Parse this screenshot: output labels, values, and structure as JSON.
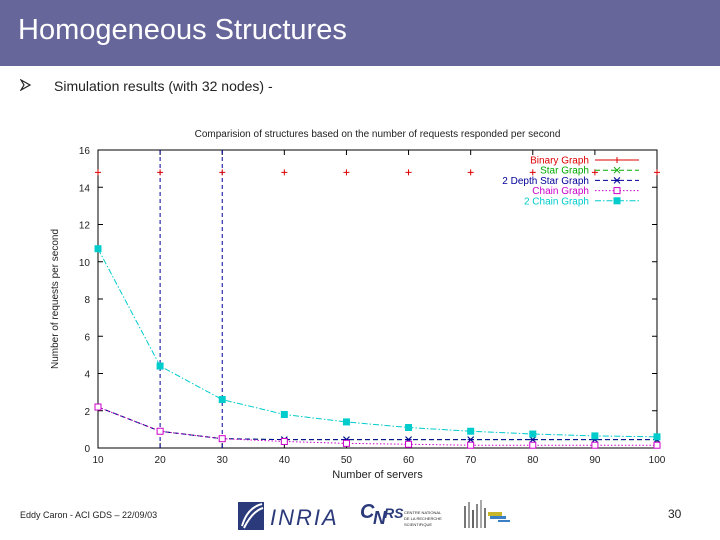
{
  "slide": {
    "title": "Homogeneous Structures",
    "bullet": "Simulation results (with 32 nodes) -",
    "bullet_icon": "arrow-bullet-icon",
    "author": "Eddy Caron - ACI GDS – 22/09/03",
    "page_number": "30",
    "title_bar_color": "#66669a"
  },
  "logos": {
    "inria": "INRIA",
    "cnrs_lines": [
      "CENTRE NATIONAL",
      "DE LA RECHERCHE",
      "SCIENTIFIQUE"
    ]
  },
  "chart_data": {
    "type": "line",
    "title": "Comparision of structures based on the number of requests responded per second",
    "xlabel": "Number of servers",
    "ylabel": "Number of requests per second",
    "xlim": [
      10,
      100
    ],
    "ylim": [
      0,
      16
    ],
    "x_ticks": [
      10,
      20,
      30,
      40,
      50,
      60,
      70,
      80,
      90,
      100
    ],
    "y_ticks": [
      0,
      2,
      4,
      6,
      8,
      10,
      12,
      14,
      16
    ],
    "legend_position": "top-right",
    "vertical_markers": [
      20,
      30
    ],
    "x": [
      10,
      20,
      30,
      40,
      50,
      60,
      70,
      80,
      90,
      100
    ],
    "series": [
      {
        "name": "Binary Graph",
        "color": "#dd0000",
        "marker": "plus",
        "line": "none",
        "values": [
          14.8,
          14.8,
          14.8,
          14.8,
          14.8,
          14.8,
          14.8,
          14.8,
          14.8,
          14.8
        ]
      },
      {
        "name": "Star Graph",
        "color": "#00aa00",
        "marker": "x",
        "line": "dashed",
        "values": [
          2.2,
          0.9,
          0.5,
          0.45,
          0.45,
          0.45,
          0.45,
          0.45,
          0.45,
          0.45
        ]
      },
      {
        "name": "2 Depth Star Graph",
        "color": "#000099",
        "marker": "star",
        "line": "dashed",
        "values": [
          2.2,
          0.9,
          0.5,
          0.45,
          0.45,
          0.45,
          0.45,
          0.45,
          0.45,
          0.45
        ]
      },
      {
        "name": "Chain Graph",
        "color": "#cc00cc",
        "marker": "square-open",
        "line": "dotted",
        "values": [
          2.2,
          0.9,
          0.5,
          0.35,
          0.25,
          0.2,
          0.15,
          0.15,
          0.15,
          0.15
        ]
      },
      {
        "name": "2 Chain Graph",
        "color": "#00cccc",
        "marker": "square-filled",
        "line": "dashdot",
        "values": [
          10.7,
          4.4,
          2.6,
          1.8,
          1.4,
          1.1,
          0.9,
          0.75,
          0.65,
          0.6
        ]
      }
    ]
  }
}
